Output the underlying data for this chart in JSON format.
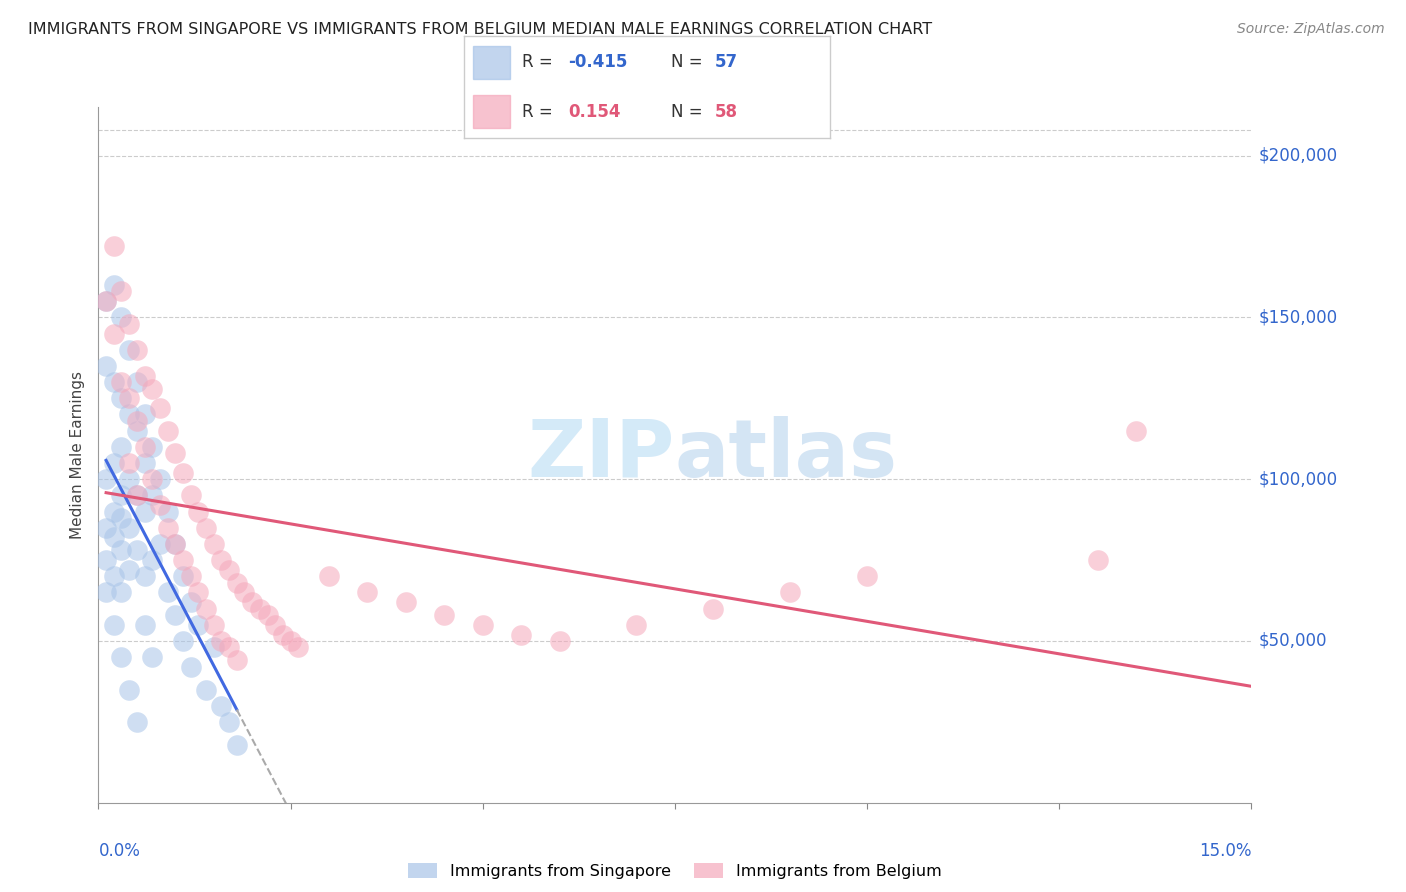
{
  "title": "IMMIGRANTS FROM SINGAPORE VS IMMIGRANTS FROM BELGIUM MEDIAN MALE EARNINGS CORRELATION CHART",
  "source": "Source: ZipAtlas.com",
  "ylabel": "Median Male Earnings",
  "ytick_labels": [
    "$50,000",
    "$100,000",
    "$150,000",
    "$200,000"
  ],
  "ytick_values": [
    50000,
    100000,
    150000,
    200000
  ],
  "xlim": [
    0.0,
    0.15
  ],
  "ylim": [
    0,
    215000
  ],
  "color_singapore": "#a8c4e8",
  "color_belgium": "#f5a8bb",
  "line_color_singapore": "#4169E1",
  "line_color_belgium": "#e05878",
  "line_dash_color": "#aaaaaa",
  "watermark_color": "#d0e8f8",
  "sg_R": -0.415,
  "sg_N": 57,
  "be_R": 0.154,
  "be_N": 58,
  "singapore_scatter_x": [
    0.001,
    0.001,
    0.001,
    0.001,
    0.001,
    0.002,
    0.002,
    0.002,
    0.002,
    0.002,
    0.002,
    0.003,
    0.003,
    0.003,
    0.003,
    0.003,
    0.003,
    0.003,
    0.004,
    0.004,
    0.004,
    0.004,
    0.004,
    0.005,
    0.005,
    0.005,
    0.005,
    0.006,
    0.006,
    0.006,
    0.006,
    0.007,
    0.007,
    0.007,
    0.008,
    0.008,
    0.009,
    0.009,
    0.01,
    0.01,
    0.011,
    0.011,
    0.012,
    0.012,
    0.013,
    0.014,
    0.015,
    0.016,
    0.017,
    0.018,
    0.001,
    0.002,
    0.003,
    0.004,
    0.005,
    0.006,
    0.007
  ],
  "singapore_scatter_y": [
    155000,
    135000,
    100000,
    85000,
    75000,
    160000,
    130000,
    105000,
    90000,
    82000,
    70000,
    150000,
    125000,
    110000,
    95000,
    88000,
    78000,
    65000,
    140000,
    120000,
    100000,
    85000,
    72000,
    130000,
    115000,
    95000,
    78000,
    120000,
    105000,
    90000,
    70000,
    110000,
    95000,
    75000,
    100000,
    80000,
    90000,
    65000,
    80000,
    58000,
    70000,
    50000,
    62000,
    42000,
    55000,
    35000,
    48000,
    30000,
    25000,
    18000,
    65000,
    55000,
    45000,
    35000,
    25000,
    55000,
    45000
  ],
  "belgium_scatter_x": [
    0.001,
    0.002,
    0.002,
    0.003,
    0.003,
    0.004,
    0.004,
    0.004,
    0.005,
    0.005,
    0.005,
    0.006,
    0.006,
    0.007,
    0.007,
    0.008,
    0.008,
    0.009,
    0.009,
    0.01,
    0.01,
    0.011,
    0.011,
    0.012,
    0.012,
    0.013,
    0.013,
    0.014,
    0.014,
    0.015,
    0.015,
    0.016,
    0.016,
    0.017,
    0.017,
    0.018,
    0.018,
    0.019,
    0.02,
    0.021,
    0.022,
    0.023,
    0.024,
    0.025,
    0.026,
    0.03,
    0.035,
    0.04,
    0.045,
    0.05,
    0.055,
    0.06,
    0.07,
    0.08,
    0.09,
    0.1,
    0.13,
    0.135
  ],
  "belgium_scatter_y": [
    155000,
    172000,
    145000,
    158000,
    130000,
    148000,
    125000,
    105000,
    140000,
    118000,
    95000,
    132000,
    110000,
    128000,
    100000,
    122000,
    92000,
    115000,
    85000,
    108000,
    80000,
    102000,
    75000,
    95000,
    70000,
    90000,
    65000,
    85000,
    60000,
    80000,
    55000,
    75000,
    50000,
    72000,
    48000,
    68000,
    44000,
    65000,
    62000,
    60000,
    58000,
    55000,
    52000,
    50000,
    48000,
    70000,
    65000,
    62000,
    58000,
    55000,
    52000,
    50000,
    55000,
    60000,
    65000,
    70000,
    75000,
    115000
  ]
}
